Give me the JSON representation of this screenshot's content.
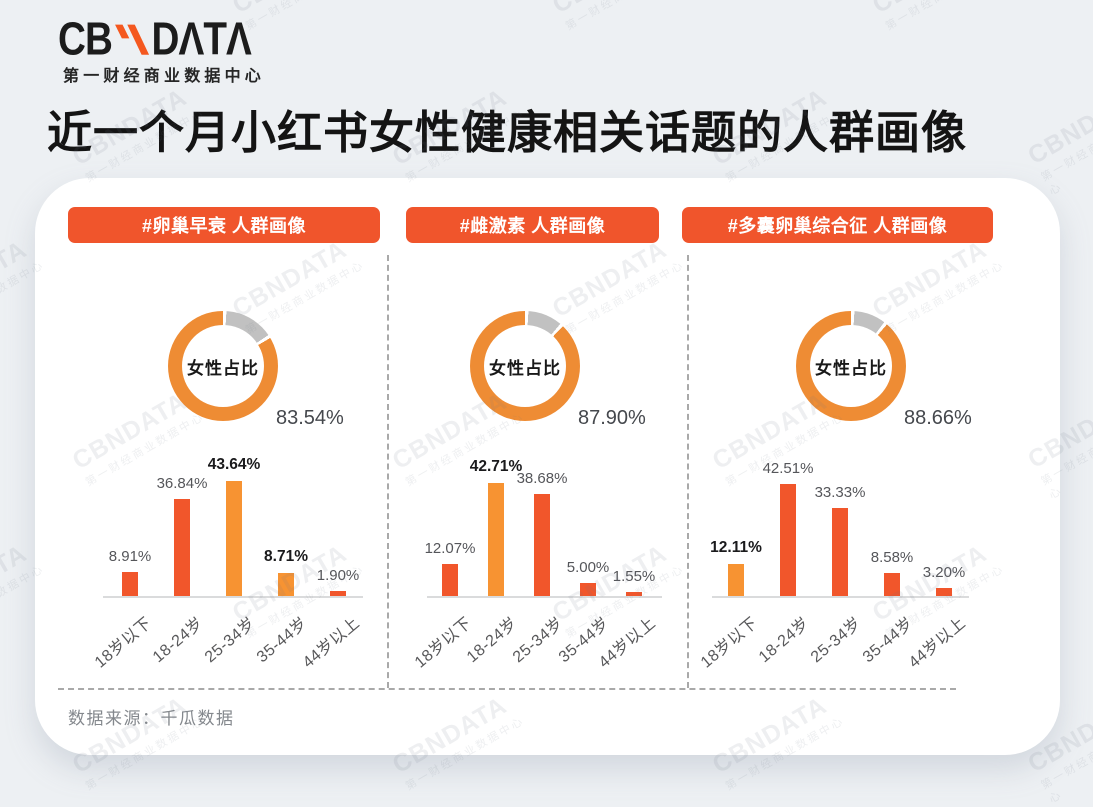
{
  "brand": {
    "prefix": "CB",
    "n": "N",
    "suffix": "DΛTΛ",
    "full_name": "CBNDATA",
    "tagline": "第一财经商业数据中心",
    "accent_color": "#F4581F"
  },
  "title": "近一个月小红书女性健康相关话题的人群画像",
  "watermark": {
    "line1": "CBNDATA",
    "line2": "第一财经商业数据中心"
  },
  "footer": {
    "source_label": "数据来源：千瓜数据"
  },
  "colors": {
    "red_bar": "#F1562B",
    "orange_bar": "#F79332",
    "donut_orange": "#EE8C34",
    "donut_gray": "#C1C1C1",
    "pill_bg": "#F0552C"
  },
  "chart_data": [
    {
      "type": "donut+bar",
      "panel_title": "#卵巢早衰 人群画像",
      "donut": {
        "label": "女性占比",
        "value": 83.54,
        "display": "83.54%"
      },
      "bar": {
        "categories": [
          "18岁以下",
          "18-24岁",
          "25-34岁",
          "35-44岁",
          "44岁以上"
        ],
        "values": [
          8.91,
          36.84,
          43.64,
          8.71,
          1.9
        ],
        "displays": [
          "8.91%",
          "36.84%",
          "43.64%",
          "8.71%",
          "1.90%"
        ],
        "highlight": [
          false,
          false,
          true,
          true,
          false
        ],
        "ylim": [
          0,
          50
        ],
        "grid": false,
        "legend": "none"
      }
    },
    {
      "type": "donut+bar",
      "panel_title": "#雌激素 人群画像",
      "donut": {
        "label": "女性占比",
        "value": 87.9,
        "display": "87.90%"
      },
      "bar": {
        "categories": [
          "18岁以下",
          "18-24岁",
          "25-34岁",
          "35-44岁",
          "44岁以上"
        ],
        "values": [
          12.07,
          42.71,
          38.68,
          5.0,
          1.55
        ],
        "displays": [
          "12.07%",
          "42.71%",
          "38.68%",
          "5.00%",
          "1.55%"
        ],
        "highlight": [
          false,
          true,
          false,
          false,
          false
        ],
        "ylim": [
          0,
          50
        ],
        "grid": false,
        "legend": "none"
      }
    },
    {
      "type": "donut+bar",
      "panel_title": "#多囊卵巢综合征 人群画像",
      "donut": {
        "label": "女性占比",
        "value": 88.66,
        "display": "88.66%"
      },
      "bar": {
        "categories": [
          "18岁以下",
          "18-24岁",
          "25-34岁",
          "35-44岁",
          "44岁以上"
        ],
        "values": [
          12.11,
          42.51,
          33.33,
          8.58,
          3.2
        ],
        "displays": [
          "12.11%",
          "42.51%",
          "33.33%",
          "8.58%",
          "3.20%"
        ],
        "highlight": [
          true,
          false,
          false,
          false,
          false
        ],
        "ylim": [
          0,
          50
        ],
        "grid": false,
        "legend": "none"
      }
    }
  ]
}
